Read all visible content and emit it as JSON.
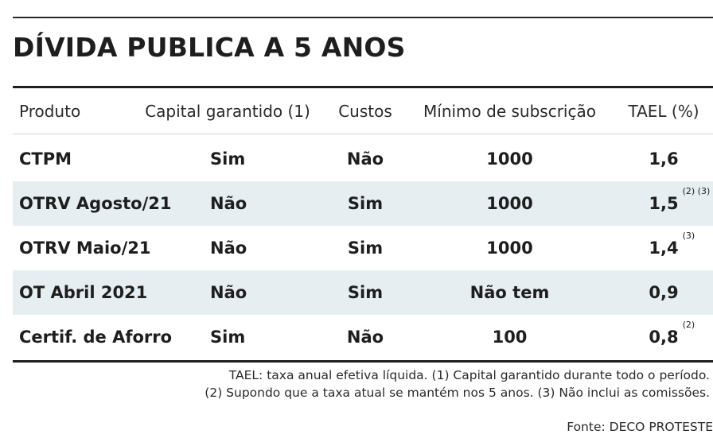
{
  "title": "DÍVIDA PUBLICA A 5 ANOS",
  "table": {
    "headers": [
      "Produto",
      "Capital garantido (1)",
      "Custos",
      "Mínimo de subscrição",
      "TAEL (%)"
    ],
    "rows": [
      {
        "produto": "CTPM",
        "capital": "Sim",
        "custos": "Não",
        "minimo": "1000",
        "tael": "1,6",
        "note": ""
      },
      {
        "produto": "OTRV Agosto/21",
        "capital": "Não",
        "custos": "Sim",
        "minimo": "1000",
        "tael": "1,5",
        "note": "(2) (3)"
      },
      {
        "produto": "OTRV Maio/21",
        "capital": "Não",
        "custos": "Sim",
        "minimo": "1000",
        "tael": "1,4",
        "note": "(3)"
      },
      {
        "produto": "OT Abril 2021",
        "capital": "Não",
        "custos": "Sim",
        "minimo": "Não tem",
        "tael": "0,9",
        "note": ""
      },
      {
        "produto": "Certif. de Aforro",
        "capital": "Sim",
        "custos": "Não",
        "minimo": "100",
        "tael": "0,8",
        "note": "(2)"
      }
    ]
  },
  "footnotes": {
    "line1": "TAEL: taxa anual efetiva líquida. (1) Capital garantido durante todo o período.",
    "line2": "(2) Supondo que a taxa atual se mantém nos 5 anos. (3) Não inclui as comissões."
  },
  "source": "Fonte: DECO PROTESTE"
}
